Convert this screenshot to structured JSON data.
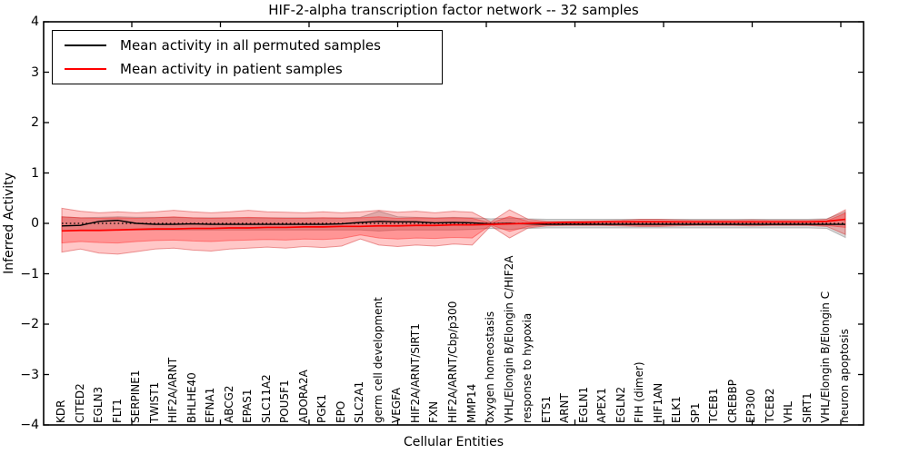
{
  "chart_data": {
    "type": "line",
    "title": "HIF-2-alpha transcription factor network -- 32 samples",
    "xlabel": "Cellular Entities",
    "ylabel": "Inferred Activity",
    "ylim": [
      -4,
      4
    ],
    "grid": false,
    "legend_position": "upper left",
    "zero_line": 0,
    "ytick_labels": [
      "4",
      "3",
      "2",
      "1",
      "0",
      "−1",
      "−2",
      "−3",
      "−4"
    ],
    "categories": [
      "KDR",
      "CITED2",
      "EGLN3",
      "FLT1",
      "SERPINE1",
      "TWIST1",
      "HIF2A/ARNT",
      "BHLHE40",
      "EFNA1",
      "ABCG2",
      "EPAS1",
      "SLC11A2",
      "POU5F1",
      "ADORA2A",
      "PGK1",
      "EPO",
      "SLC2A1",
      "germ cell development",
      "VEGFA",
      "HIF2A/ARNT/SIRT1",
      "FXN",
      "HIF2A/ARNT/Cbp/p300",
      "MMP14",
      "oxygen homeostasis",
      "VHL/Elongin B/Elongin C/HIF2A",
      "response to hypoxia",
      "ETS1",
      "ARNT",
      "EGLN1",
      "APEX1",
      "EGLN2",
      "FIH (dimer)",
      "HIF1AN",
      "ELK1",
      "SP1",
      "TCEB1",
      "CREBBP",
      "EP300",
      "TCEB2",
      "VHL",
      "SIRT1",
      "VHL/Elongin B/Elongin C",
      "neuron apoptosis"
    ],
    "series": [
      {
        "name": "Mean activity in all permuted samples",
        "color": "#000000",
        "values": [
          -0.05,
          -0.04,
          0.04,
          0.06,
          0.0,
          -0.02,
          -0.02,
          -0.01,
          -0.02,
          -0.02,
          -0.02,
          -0.02,
          -0.02,
          -0.02,
          -0.02,
          -0.01,
          0.02,
          0.04,
          0.03,
          0.03,
          0.01,
          0.02,
          0.01,
          -0.01,
          0.0,
          -0.01,
          -0.02,
          -0.02,
          -0.02,
          -0.02,
          -0.02,
          -0.02,
          -0.02,
          -0.02,
          -0.02,
          -0.02,
          -0.02,
          -0.02,
          -0.02,
          -0.02,
          -0.02,
          -0.02,
          -0.02
        ]
      },
      {
        "name": "Mean activity in patient samples",
        "color": "#ff0000",
        "values": [
          -0.15,
          -0.14,
          -0.14,
          -0.13,
          -0.12,
          -0.11,
          -0.11,
          -0.1,
          -0.1,
          -0.09,
          -0.09,
          -0.08,
          -0.08,
          -0.07,
          -0.07,
          -0.06,
          -0.06,
          -0.05,
          -0.05,
          -0.04,
          -0.04,
          -0.03,
          -0.03,
          -0.02,
          -0.01,
          0.0,
          0.01,
          0.02,
          0.02,
          0.03,
          0.03,
          0.03,
          0.03,
          0.03,
          0.03,
          0.03,
          0.03,
          0.03,
          0.03,
          0.03,
          0.03,
          0.04,
          0.08
        ]
      }
    ],
    "bands": [
      {
        "name": "permuted-range",
        "fill": "rgba(120,120,120,0.28)",
        "stroke": "rgba(120,120,120,0.45)",
        "upper": [
          0.13,
          0.11,
          0.12,
          0.13,
          0.12,
          0.12,
          0.12,
          0.11,
          0.11,
          0.11,
          0.11,
          0.11,
          0.11,
          0.11,
          0.11,
          0.11,
          0.12,
          0.24,
          0.13,
          0.12,
          0.11,
          0.12,
          0.11,
          0.09,
          0.11,
          0.09,
          0.08,
          0.08,
          0.08,
          0.08,
          0.08,
          0.08,
          0.08,
          0.08,
          0.08,
          0.08,
          0.08,
          0.08,
          0.08,
          0.08,
          0.08,
          0.09,
          0.23
        ],
        "lower": [
          -0.15,
          -0.13,
          -0.13,
          -0.13,
          -0.13,
          -0.13,
          -0.13,
          -0.13,
          -0.13,
          -0.13,
          -0.13,
          -0.13,
          -0.13,
          -0.13,
          -0.13,
          -0.13,
          -0.13,
          -0.15,
          -0.13,
          -0.13,
          -0.13,
          -0.13,
          -0.12,
          -0.1,
          -0.12,
          -0.1,
          -0.09,
          -0.09,
          -0.09,
          -0.09,
          -0.09,
          -0.09,
          -0.09,
          -0.09,
          -0.09,
          -0.09,
          -0.09,
          -0.09,
          -0.09,
          -0.09,
          -0.09,
          -0.1,
          -0.28
        ]
      },
      {
        "name": "patient-outer",
        "fill": "rgba(255,0,0,0.22)",
        "stroke": "rgba(210,40,40,0.45)",
        "upper": [
          0.3,
          0.24,
          0.21,
          0.23,
          0.21,
          0.23,
          0.26,
          0.23,
          0.21,
          0.23,
          0.26,
          0.23,
          0.22,
          0.21,
          0.23,
          0.21,
          0.23,
          0.26,
          0.22,
          0.24,
          0.21,
          0.24,
          0.22,
          0.03,
          0.27,
          0.08,
          0.04,
          0.04,
          0.05,
          0.05,
          0.06,
          0.08,
          0.08,
          0.07,
          0.06,
          0.06,
          0.06,
          0.07,
          0.06,
          0.06,
          0.06,
          0.08,
          0.27
        ],
        "lower": [
          -0.57,
          -0.51,
          -0.59,
          -0.61,
          -0.56,
          -0.51,
          -0.49,
          -0.53,
          -0.55,
          -0.51,
          -0.49,
          -0.47,
          -0.49,
          -0.46,
          -0.48,
          -0.45,
          -0.31,
          -0.43,
          -0.46,
          -0.43,
          -0.45,
          -0.41,
          -0.43,
          -0.05,
          -0.29,
          -0.09,
          -0.05,
          -0.04,
          -0.04,
          -0.04,
          -0.05,
          -0.06,
          -0.06,
          -0.05,
          -0.04,
          -0.04,
          -0.04,
          -0.05,
          -0.04,
          -0.04,
          -0.04,
          -0.06,
          -0.22
        ]
      },
      {
        "name": "patient-inner",
        "fill": "rgba(255,0,0,0.25)",
        "stroke": "rgba(255,0,0,0.35)",
        "upper": [
          0.13,
          0.11,
          0.1,
          0.11,
          0.1,
          0.11,
          0.13,
          0.11,
          0.1,
          0.11,
          0.12,
          0.11,
          0.1,
          0.1,
          0.11,
          0.1,
          0.11,
          0.13,
          0.1,
          0.11,
          0.1,
          0.11,
          0.1,
          0.01,
          0.14,
          0.04,
          0.02,
          0.02,
          0.03,
          0.03,
          0.04,
          0.05,
          0.05,
          0.04,
          0.03,
          0.03,
          0.03,
          0.04,
          0.03,
          0.03,
          0.03,
          0.05,
          0.2
        ],
        "lower": [
          -0.39,
          -0.36,
          -0.38,
          -0.39,
          -0.36,
          -0.34,
          -0.33,
          -0.35,
          -0.36,
          -0.34,
          -0.33,
          -0.32,
          -0.33,
          -0.31,
          -0.32,
          -0.3,
          -0.23,
          -0.29,
          -0.31,
          -0.29,
          -0.3,
          -0.28,
          -0.29,
          -0.03,
          -0.16,
          -0.06,
          -0.03,
          -0.03,
          -0.03,
          -0.03,
          -0.03,
          -0.04,
          -0.04,
          -0.03,
          -0.03,
          -0.03,
          -0.03,
          -0.03,
          -0.03,
          -0.03,
          -0.03,
          -0.04,
          -0.08
        ]
      }
    ]
  },
  "legend": {
    "items": [
      {
        "label": "Mean activity in all permuted samples",
        "color": "#000000"
      },
      {
        "label": "Mean activity in patient samples",
        "color": "#ff0000"
      }
    ]
  },
  "colors": {
    "frame": "#000000",
    "background": "#ffffff",
    "permuted_line": "#000000",
    "patient_line": "#ff0000",
    "zero_line": "#000000"
  }
}
